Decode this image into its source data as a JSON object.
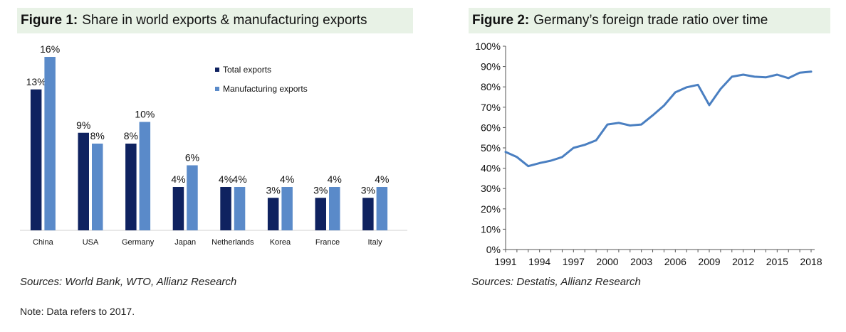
{
  "figure1": {
    "number": "Figure 1:",
    "title": "Share in world exports & manufacturing exports",
    "source": "Sources: World Bank, WTO, Allianz Research",
    "note": "Note: Data refers to 2017."
  },
  "figure2": {
    "number": "Figure 2:",
    "title": "Germany’s foreign trade ratio over time",
    "source": "Sources: Destatis, Allianz Research"
  },
  "colors": {
    "total": "#0f2260",
    "manufacturing": "#5a8ac9",
    "line": "#4a7fc1",
    "header_bg": "#e8f2e6"
  },
  "chart_data": [
    {
      "type": "bar",
      "categories": [
        "China",
        "USA",
        "Germany",
        "Japan",
        "Netherlands",
        "Korea",
        "France",
        "Italy"
      ],
      "series": [
        {
          "name": "Total exports",
          "values": [
            13,
            9,
            8,
            4,
            4,
            3,
            3,
            3
          ],
          "labels": [
            "13%",
            "9%",
            "8%",
            "4%",
            "4%",
            "3%",
            "3%",
            "3%"
          ]
        },
        {
          "name": "Manufacturing exports",
          "values": [
            16,
            8,
            10,
            6,
            4,
            4,
            4,
            4
          ],
          "labels": [
            "16%",
            "8%",
            "10%",
            "6%",
            "4%",
            "4%",
            "4%",
            "4%"
          ]
        }
      ],
      "ylim": [
        0,
        17
      ],
      "legend": "top-right",
      "grid": false
    },
    {
      "type": "line",
      "x": [
        1991,
        1992,
        1993,
        1994,
        1995,
        1996,
        1997,
        1998,
        1999,
        2000,
        2001,
        2002,
        2003,
        2004,
        2005,
        2006,
        2007,
        2008,
        2009,
        2010,
        2011,
        2012,
        2013,
        2014,
        2015,
        2016,
        2017,
        2018
      ],
      "series": [
        {
          "values": [
            48,
            45.5,
            41,
            42.5,
            43.7,
            45.5,
            50,
            51.5,
            53.7,
            61.5,
            62.3,
            61,
            61.5,
            66,
            70.8,
            77.3,
            79.8,
            81,
            71,
            79,
            85,
            86,
            85,
            84.7,
            86,
            84.3,
            87,
            87.5
          ]
        }
      ],
      "x_ticks": [
        "1991",
        "1994",
        "1997",
        "2000",
        "2003",
        "2006",
        "2009",
        "2012",
        "2015",
        "2018"
      ],
      "y_ticks": [
        "0%",
        "10%",
        "20%",
        "30%",
        "40%",
        "50%",
        "60%",
        "70%",
        "80%",
        "90%",
        "100%"
      ],
      "ylim": [
        0,
        100
      ],
      "xlim": [
        1991,
        2018
      ],
      "grid": false
    }
  ]
}
